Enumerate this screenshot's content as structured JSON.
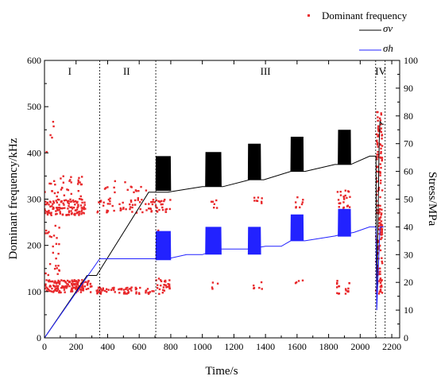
{
  "chart_data": {
    "type": "scatter",
    "title": "",
    "xlabel": "Time/s",
    "ylabel": "Dominant frequency/kHz",
    "y2label": "Stress/MPa",
    "xlim": [
      0,
      2250
    ],
    "ylim": [
      0,
      600
    ],
    "y2lim": [
      0,
      100
    ],
    "xticks": [
      "0",
      "200",
      "400",
      "600",
      "800",
      "1000",
      "1200",
      "1400",
      "1600",
      "1800",
      "2000",
      "2200"
    ],
    "yticks": [
      "0",
      "100",
      "200",
      "300",
      "400",
      "500",
      "600"
    ],
    "y2ticks": [
      "0",
      "10",
      "20",
      "30",
      "40",
      "50",
      "60",
      "70",
      "80",
      "90",
      "100"
    ],
    "grid": false,
    "legend_position": "top-right",
    "regions": [
      {
        "label": "I",
        "x": 160
      },
      {
        "label": "II",
        "x": 520
      },
      {
        "label": "III",
        "x": 1400
      },
      {
        "label": "IV",
        "x": 2130
      }
    ],
    "region_boundaries": [
      350,
      705,
      2098,
      2158
    ],
    "series": [
      {
        "name": "Dominant frequency",
        "kind": "scatter",
        "axis": "left",
        "color": "#e8282b",
        "clusters": [
          {
            "x": [
              0,
              300
            ],
            "y": [
              98,
              125
            ],
            "n": 160
          },
          {
            "x": [
              0,
              260
            ],
            "y": [
              265,
              300
            ],
            "n": 120
          },
          {
            "x": [
              0,
              240
            ],
            "y": [
              300,
              350
            ],
            "n": 35
          },
          {
            "x": [
              0,
              100
            ],
            "y": [
              200,
              250
            ],
            "n": 12
          },
          {
            "x": [
              0,
              100
            ],
            "y": [
              130,
              200
            ],
            "n": 14
          },
          {
            "x": [
              0,
              60
            ],
            "y": [
              400,
              480
            ],
            "n": 5
          },
          {
            "x": [
              330,
              700
            ],
            "y": [
              95,
              110
            ],
            "n": 70
          },
          {
            "x": [
              330,
              700
            ],
            "y": [
              270,
              300
            ],
            "n": 55
          },
          {
            "x": [
              380,
              700
            ],
            "y": [
              300,
              340
            ],
            "n": 18
          },
          {
            "x": [
              705,
              800
            ],
            "y": [
              95,
              130
            ],
            "n": 28
          },
          {
            "x": [
              705,
              800
            ],
            "y": [
              270,
              300
            ],
            "n": 22
          },
          {
            "x": [
              705,
              760
            ],
            "y": [
              180,
              250
            ],
            "n": 6
          },
          {
            "x": [
              1040,
              1100
            ],
            "y": [
              280,
              300
            ],
            "n": 6
          },
          {
            "x": [
              1040,
              1100
            ],
            "y": [
              100,
              130
            ],
            "n": 4
          },
          {
            "x": [
              1320,
              1380
            ],
            "y": [
              290,
              305
            ],
            "n": 8
          },
          {
            "x": [
              1320,
              1380
            ],
            "y": [
              100,
              125
            ],
            "n": 6
          },
          {
            "x": [
              1590,
              1640
            ],
            "y": [
              280,
              305
            ],
            "n": 8
          },
          {
            "x": [
              1590,
              1640
            ],
            "y": [
              100,
              130
            ],
            "n": 4
          },
          {
            "x": [
              1850,
              1940
            ],
            "y": [
              270,
              320
            ],
            "n": 30
          },
          {
            "x": [
              1850,
              1940
            ],
            "y": [
              95,
              125
            ],
            "n": 20
          },
          {
            "x": [
              2100,
              2140
            ],
            "y": [
              95,
              490
            ],
            "n": 170
          }
        ]
      },
      {
        "name": "σv",
        "kind": "line",
        "axis": "right",
        "color": "#000000",
        "x": [
          0,
          270,
          330,
          660,
          780,
          1000,
          1130,
          1300,
          1390,
          1560,
          1650,
          1840,
          1940,
          2060,
          2100,
          2105,
          2120,
          2125,
          2140,
          2150
        ],
        "y": [
          0,
          22.5,
          22.5,
          52.5,
          52.5,
          54.5,
          54.5,
          57,
          57,
          60,
          60,
          62.5,
          62.5,
          65.5,
          65.5,
          15,
          70,
          78,
          77,
          77
        ],
        "oscillations": [
          {
            "x": [
              705,
              800
            ],
            "y": [
              53,
              65.5
            ],
            "cycles": 24
          },
          {
            "x": [
              1020,
              1120
            ],
            "y": [
              54.5,
              67
            ],
            "cycles": 26
          },
          {
            "x": [
              1290,
              1370
            ],
            "y": [
              57,
              70
            ],
            "cycles": 22
          },
          {
            "x": [
              1560,
              1640
            ],
            "y": [
              60,
              72.5
            ],
            "cycles": 22
          },
          {
            "x": [
              1860,
              1940
            ],
            "y": [
              62.5,
              75
            ],
            "cycles": 22
          }
        ]
      },
      {
        "name": "σh",
        "kind": "line",
        "axis": "right",
        "color": "#2222ff",
        "x": [
          0,
          350,
          700,
          780,
          900,
          1000,
          1100,
          1300,
          1400,
          1500,
          1560,
          1650,
          1840,
          1860,
          1960,
          2060,
          2100,
          2105,
          2125,
          2140,
          2150
        ],
        "y": [
          0,
          28.5,
          28.5,
          28.5,
          30,
          30,
          32,
          32,
          33,
          33,
          35,
          35,
          36.7,
          37,
          38,
          40,
          40,
          10,
          40,
          40,
          40
        ],
        "oscillations": [
          {
            "x": [
              705,
              800
            ],
            "y": [
              28,
              38.5
            ],
            "cycles": 24
          },
          {
            "x": [
              1020,
              1120
            ],
            "y": [
              30,
              40
            ],
            "cycles": 26
          },
          {
            "x": [
              1290,
              1370
            ],
            "y": [
              30,
              40
            ],
            "cycles": 22
          },
          {
            "x": [
              1560,
              1640
            ],
            "y": [
              35,
              44.5
            ],
            "cycles": 22
          },
          {
            "x": [
              1860,
              1940
            ],
            "y": [
              36.5,
              46.5
            ],
            "cycles": 22
          }
        ]
      }
    ]
  }
}
